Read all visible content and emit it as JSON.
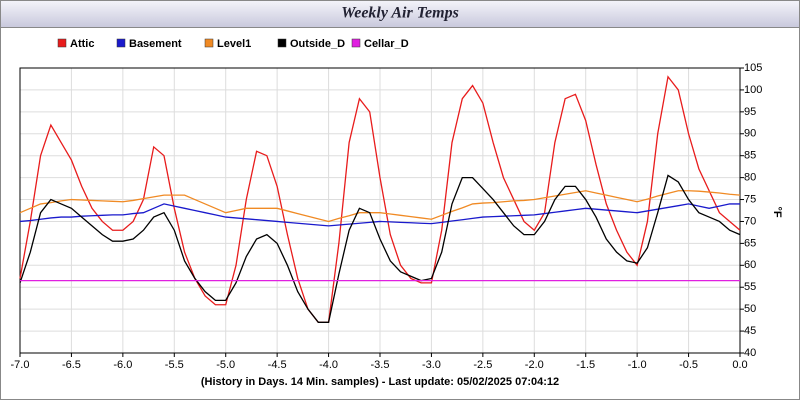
{
  "chart_data": {
    "type": "line",
    "title": "Weekly Air Temps",
    "footer": "(History in Days. 14 Min. samples) - Last update: 05/02/2025 07:04:12",
    "ylabel": "°F",
    "x": [
      -7.0,
      -6.9,
      -6.8,
      -6.7,
      -6.6,
      -6.5,
      -6.4,
      -6.3,
      -6.2,
      -6.1,
      -6.0,
      -5.9,
      -5.8,
      -5.7,
      -5.6,
      -5.5,
      -5.4,
      -5.3,
      -5.2,
      -5.1,
      -5.0,
      -4.9,
      -4.8,
      -4.7,
      -4.6,
      -4.5,
      -4.4,
      -4.3,
      -4.2,
      -4.1,
      -4.0,
      -3.9,
      -3.8,
      -3.7,
      -3.6,
      -3.5,
      -3.4,
      -3.3,
      -3.2,
      -3.1,
      -3.0,
      -2.9,
      -2.8,
      -2.7,
      -2.6,
      -2.5,
      -2.4,
      -2.3,
      -2.2,
      -2.1,
      -2.0,
      -1.9,
      -1.8,
      -1.7,
      -1.6,
      -1.5,
      -1.4,
      -1.3,
      -1.2,
      -1.1,
      -1.0,
      -0.9,
      -0.8,
      -0.7,
      -0.6,
      -0.5,
      -0.4,
      -0.3,
      -0.2,
      -0.1,
      0.0
    ],
    "series": [
      {
        "name": "Attic",
        "color": "#e81c1c",
        "values": [
          57,
          70,
          85,
          92,
          88,
          84,
          78,
          73,
          70,
          68,
          68,
          70,
          75,
          87,
          85,
          73,
          63,
          57,
          53,
          51,
          51,
          60,
          75,
          86,
          85,
          78,
          67,
          57,
          50,
          47,
          47,
          65,
          88,
          98,
          95,
          80,
          67,
          60,
          57,
          56,
          56,
          68,
          88,
          98,
          101,
          97,
          88,
          80,
          75,
          70,
          68,
          72,
          88,
          98,
          99,
          93,
          83,
          74,
          68,
          63,
          60,
          70,
          90,
          103,
          100,
          90,
          82,
          77,
          72,
          70,
          68
        ]
      },
      {
        "name": "Basement",
        "color": "#1a1acc",
        "values": [
          70,
          70.2,
          70.5,
          70.8,
          71,
          71,
          71.2,
          71.3,
          71.4,
          71.5,
          71.5,
          71.8,
          72,
          73,
          74,
          73.5,
          73,
          72.5,
          72,
          71.5,
          71,
          70.8,
          70.6,
          70.4,
          70.2,
          70,
          69.8,
          69.6,
          69.4,
          69.2,
          69,
          69.2,
          69.4,
          69.6,
          69.8,
          70,
          69.9,
          69.8,
          69.7,
          69.6,
          69.5,
          69.8,
          70.1,
          70.4,
          70.7,
          71,
          71.1,
          71.2,
          71.3,
          71.4,
          71.5,
          71.8,
          72.1,
          72.4,
          72.7,
          73,
          72.8,
          72.6,
          72.4,
          72.2,
          72,
          72.4,
          72.8,
          73.2,
          73.6,
          74,
          73.5,
          73,
          73.5,
          74,
          74
        ]
      },
      {
        "name": "Level1",
        "color": "#f08a24",
        "values": [
          72,
          73,
          74,
          74.3,
          74.7,
          75,
          74.9,
          74.8,
          74.7,
          74.6,
          74.5,
          74.8,
          75.2,
          75.6,
          76,
          76,
          76,
          75,
          74,
          73,
          72,
          72.5,
          73,
          73,
          73,
          73,
          72.4,
          71.8,
          71.2,
          70.6,
          70,
          70.7,
          71.3,
          72,
          72,
          72,
          71.7,
          71.4,
          71.1,
          70.8,
          70.5,
          71.4,
          72.3,
          73.1,
          74,
          74.2,
          74.3,
          74.5,
          74.7,
          74.8,
          75,
          75.4,
          75.8,
          76.2,
          76.6,
          77,
          76.5,
          76,
          75.5,
          75,
          74.5,
          75.1,
          75.8,
          76.4,
          77,
          77,
          76.9,
          76.7,
          76.5,
          76.2,
          76
        ]
      },
      {
        "name": "Outside_D",
        "color": "#000000",
        "values": [
          56,
          63,
          72,
          75,
          74,
          73,
          71,
          69,
          67,
          65.5,
          65.5,
          66,
          68,
          71,
          72,
          68,
          61,
          57,
          54,
          52,
          52,
          56,
          62,
          66,
          67,
          65,
          60,
          54,
          50,
          47,
          47,
          58,
          68,
          73,
          72,
          66,
          61,
          58.5,
          57.5,
          56.5,
          57,
          63,
          74,
          80,
          80,
          77.5,
          75,
          72,
          69,
          67,
          67,
          70,
          75,
          78,
          78,
          75,
          71,
          66,
          63,
          61,
          60.5,
          64,
          72,
          80.5,
          79,
          75,
          72,
          71,
          70,
          68,
          67
        ]
      },
      {
        "name": "Cellar_D",
        "color": "#e020e0",
        "values": [
          56.5,
          56.5,
          56.5,
          56.5,
          56.5,
          56.5,
          56.5,
          56.5,
          56.5,
          56.5,
          56.5,
          56.5,
          56.5,
          56.5,
          56.5,
          56.5,
          56.5,
          56.5,
          56.5,
          56.5,
          56.5,
          56.5,
          56.5,
          56.5,
          56.5,
          56.5,
          56.5,
          56.5,
          56.5,
          56.5,
          56.5,
          56.5,
          56.5,
          56.5,
          56.5,
          56.5,
          56.5,
          56.5,
          56.5,
          56.5,
          56.5,
          56.5,
          56.5,
          56.5,
          56.5,
          56.5,
          56.5,
          56.5,
          56.5,
          56.5,
          56.5,
          56.5,
          56.5,
          56.5,
          56.5,
          56.5,
          56.5,
          56.5,
          56.5,
          56.5,
          56.5,
          56.5,
          56.5,
          56.5,
          56.5,
          56.5,
          56.5,
          56.5,
          56.5,
          56.5,
          56.5
        ]
      }
    ],
    "xlim": [
      -7,
      0
    ],
    "xticks": [
      {
        "value": -7,
        "label": "-7.0"
      },
      -6.5,
      {
        "value": -6,
        "label": "-6.0"
      },
      -5.5,
      {
        "value": -5,
        "label": "-5.0"
      },
      -4.5,
      {
        "value": -4,
        "label": "-4.0"
      },
      -3.5,
      {
        "value": -3,
        "label": "-3.0"
      },
      -2.5,
      {
        "value": -2,
        "label": "-2.0"
      },
      -1.5,
      {
        "value": -1,
        "label": "-1.0"
      },
      -0.5,
      {
        "value": 0,
        "label": "0.0"
      }
    ],
    "ylim": [
      40,
      105
    ],
    "yticks": [
      40,
      45,
      50,
      55,
      60,
      65,
      70,
      75,
      80,
      85,
      90,
      95,
      100,
      105
    ],
    "grid": true
  }
}
